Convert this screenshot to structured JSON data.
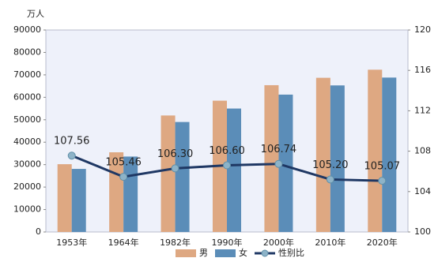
{
  "chart_data": {
    "type": "bar",
    "y_unit_label": "万人",
    "categories": [
      "1953年",
      "1964年",
      "1982年",
      "1990年",
      "2000年",
      "2010年",
      "2020年"
    ],
    "series": [
      {
        "name": "男",
        "color": "#dea882",
        "values": [
          30200,
          35500,
          51900,
          58500,
          65400,
          68700,
          72300
        ]
      },
      {
        "name": "女",
        "color": "#5b8db8",
        "values": [
          28100,
          33600,
          49000,
          55000,
          61200,
          65300,
          68800
        ]
      },
      {
        "name": "性别比",
        "color": "#1f3864",
        "marker_color": "#8db3c8",
        "axis": "y2",
        "values": [
          107.56,
          105.46,
          106.3,
          106.6,
          106.74,
          105.2,
          105.07
        ],
        "value_labels": [
          "107.56",
          "105.46",
          "106.30",
          "106.60",
          "106.74",
          "105.20",
          "105.07"
        ]
      }
    ],
    "ylim": [
      0,
      90000
    ],
    "yticks": [
      0,
      10000,
      20000,
      30000,
      40000,
      50000,
      60000,
      70000,
      80000,
      90000
    ],
    "y2lim": [
      100,
      120
    ],
    "y2ticks": [
      100,
      104,
      108,
      112,
      116,
      120
    ],
    "legend": "bottom"
  }
}
